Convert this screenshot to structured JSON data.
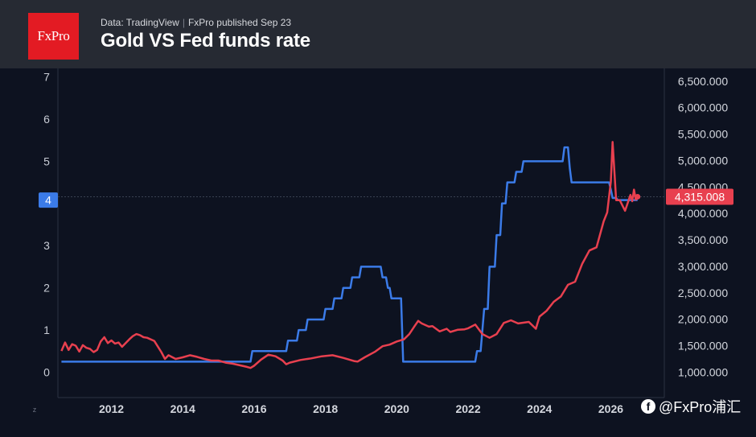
{
  "header": {
    "logo_text": "FxPro",
    "source_data": "Data: TradingView",
    "source_separator": "|",
    "source_published": "FxPro published Sep 23",
    "title": "Gold VS Fed funds rate"
  },
  "watermark": {
    "icon": "facebook-icon",
    "text": "@FxPro浦汇"
  },
  "colors": {
    "background": "#0d1220",
    "header_bg": "#262a33",
    "logo_bg": "#e31b23",
    "fed_rate": "#3b7be8",
    "gold": "#e8404f"
  },
  "chart_data": {
    "type": "line",
    "title": "Gold VS Fed funds rate",
    "x_ticks": [
      "2012",
      "2014",
      "2016",
      "2018",
      "2020",
      "2022",
      "2024",
      "2026"
    ],
    "x_tick_values": [
      2012,
      2014,
      2016,
      2018,
      2020,
      2022,
      2024,
      2026
    ],
    "xlim": [
      2010.5,
      2027.5
    ],
    "left_axis": {
      "ticks": [
        "0",
        "1",
        "2",
        "3",
        "4",
        "5",
        "6",
        "7"
      ],
      "tick_values": [
        0,
        1,
        2,
        3,
        4,
        5,
        6,
        7
      ],
      "ylim": [
        -0.6,
        7.2
      ],
      "current_label": "4",
      "current_value": 4.08
    },
    "right_axis": {
      "ticks": [
        "1,000.000",
        "1,500.000",
        "2,000.000",
        "2,500.000",
        "3,000.000",
        "3,500.000",
        "4,000.000",
        "4,500.000",
        "5,000.000",
        "5,500.000",
        "6,000.000",
        "6,500.000"
      ],
      "tick_values": [
        1000,
        1500,
        2000,
        2500,
        3000,
        3500,
        4000,
        4500,
        5000,
        5500,
        6000,
        6500
      ],
      "ylim": [
        520,
        6740
      ],
      "current_label": "4,315.008",
      "current_value": 4315.008
    },
    "corner_label": "z",
    "series": [
      {
        "axis": "left",
        "color": "#3b7be8",
        "x": [
          2010.6,
          2015.9,
          2015.95,
          2016.9,
          2016.95,
          2017.2,
          2017.25,
          2017.45,
          2017.5,
          2017.95,
          2018.0,
          2018.2,
          2018.25,
          2018.45,
          2018.5,
          2018.7,
          2018.75,
          2018.95,
          2019.0,
          2019.55,
          2019.6,
          2019.7,
          2019.75,
          2019.8,
          2019.85,
          2020.12,
          2020.18,
          2022.2,
          2022.25,
          2022.35,
          2022.4,
          2022.45,
          2022.55,
          2022.6,
          2022.75,
          2022.8,
          2022.9,
          2022.95,
          2023.05,
          2023.1,
          2023.3,
          2023.35,
          2023.5,
          2023.55,
          2024.65,
          2024.7,
          2024.8,
          2024.85,
          2024.9,
          2025.95,
          2026.0,
          2026.05,
          2026.15,
          2026.2,
          2026.7,
          2026.75
        ],
        "y": [
          0.25,
          0.25,
          0.5,
          0.5,
          0.75,
          0.75,
          1.0,
          1.0,
          1.25,
          1.25,
          1.5,
          1.5,
          1.75,
          1.75,
          2.0,
          2.0,
          2.25,
          2.25,
          2.5,
          2.5,
          2.25,
          2.25,
          2.0,
          2.0,
          1.75,
          1.75,
          0.25,
          0.25,
          0.5,
          0.5,
          1.0,
          1.5,
          1.5,
          2.5,
          2.5,
          3.25,
          3.25,
          4.0,
          4.0,
          4.5,
          4.5,
          4.75,
          4.75,
          5.0,
          5.0,
          5.33,
          5.33,
          4.83,
          4.5,
          4.5,
          4.33,
          4.13,
          4.13,
          4.08,
          4.08,
          4.08
        ]
      },
      {
        "axis": "right",
        "color": "#e8404f",
        "x": [
          2010.6,
          2010.7,
          2010.8,
          2010.9,
          2011.0,
          2011.1,
          2011.2,
          2011.3,
          2011.4,
          2011.5,
          2011.6,
          2011.7,
          2011.8,
          2011.9,
          2012.0,
          2012.1,
          2012.2,
          2012.3,
          2012.4,
          2012.5,
          2012.6,
          2012.7,
          2012.8,
          2012.9,
          2013.0,
          2013.2,
          2013.4,
          2013.5,
          2013.6,
          2013.8,
          2014.0,
          2014.2,
          2014.4,
          2014.6,
          2014.8,
          2015.0,
          2015.2,
          2015.4,
          2015.6,
          2015.8,
          2015.9,
          2016.0,
          2016.2,
          2016.4,
          2016.6,
          2016.8,
          2016.9,
          2017.0,
          2017.3,
          2017.6,
          2017.9,
          2018.2,
          2018.5,
          2018.8,
          2018.9,
          2019.1,
          2019.4,
          2019.6,
          2019.8,
          2020.0,
          2020.2,
          2020.35,
          2020.5,
          2020.6,
          2020.7,
          2020.9,
          2021.0,
          2021.2,
          2021.4,
          2021.5,
          2021.7,
          2021.9,
          2022.0,
          2022.2,
          2022.4,
          2022.6,
          2022.8,
          2023.0,
          2023.2,
          2023.4,
          2023.5,
          2023.7,
          2023.9,
          2024.0,
          2024.2,
          2024.4,
          2024.6,
          2024.8,
          2025.0,
          2025.2,
          2025.4,
          2025.6,
          2025.8,
          2025.9,
          2026.0,
          2026.05,
          2026.1,
          2026.15,
          2026.25,
          2026.4,
          2026.55,
          2026.6,
          2026.65,
          2026.7,
          2026.75
        ],
        "y": [
          1400,
          1560,
          1420,
          1530,
          1500,
          1390,
          1510,
          1460,
          1440,
          1380,
          1420,
          1580,
          1660,
          1550,
          1600,
          1540,
          1560,
          1480,
          1550,
          1620,
          1680,
          1720,
          1700,
          1660,
          1650,
          1590,
          1380,
          1250,
          1320,
          1250,
          1280,
          1320,
          1290,
          1250,
          1220,
          1220,
          1180,
          1160,
          1130,
          1100,
          1080,
          1120,
          1240,
          1330,
          1300,
          1220,
          1150,
          1180,
          1230,
          1260,
          1300,
          1320,
          1270,
          1210,
          1200,
          1280,
          1390,
          1490,
          1520,
          1580,
          1620,
          1720,
          1870,
          1970,
          1920,
          1860,
          1870,
          1770,
          1820,
          1760,
          1800,
          1810,
          1830,
          1900,
          1720,
          1650,
          1720,
          1930,
          1980,
          1920,
          1930,
          1950,
          1820,
          2050,
          2160,
          2330,
          2430,
          2650,
          2710,
          3050,
          3300,
          3360,
          3850,
          4020,
          4600,
          5350,
          4800,
          4250,
          4250,
          4050,
          4350,
          4230,
          4450,
          4260,
          4315
        ]
      }
    ]
  }
}
